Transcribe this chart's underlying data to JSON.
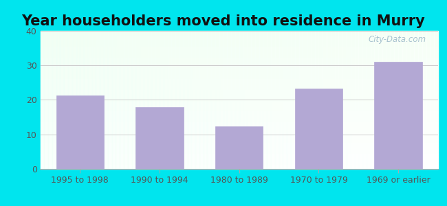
{
  "title": "Year householders moved into residence in Murry",
  "categories": [
    "1995 to 1998",
    "1990 to 1994",
    "1980 to 1989",
    "1970 to 1979",
    "1969 or earlier"
  ],
  "values": [
    21.3,
    18.0,
    12.3,
    23.3,
    31.1
  ],
  "bar_color": "#b3a8d4",
  "bar_edgecolor": "#b3a8d4",
  "ylim": [
    0,
    40
  ],
  "yticks": [
    0,
    10,
    20,
    30,
    40
  ],
  "background_outer": "#00e5ee",
  "grid_color": "#cccccc",
  "title_fontsize": 15,
  "tick_fontsize": 9,
  "watermark": "City-Data.com"
}
